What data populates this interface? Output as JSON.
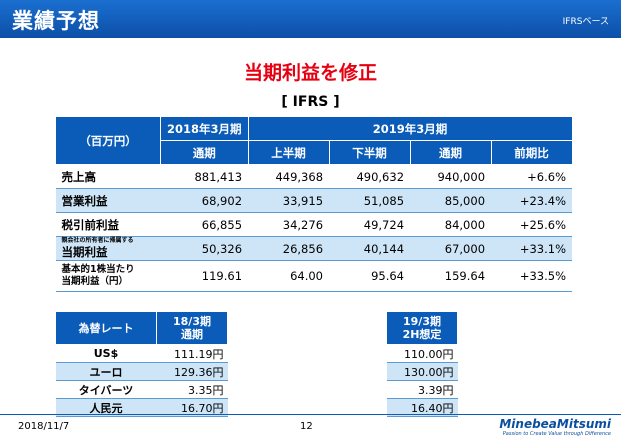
{
  "header": {
    "title": "業績予想",
    "basis": "IFRSベース"
  },
  "subtitle": "当期利益を修正",
  "standard": "[ IFRS ]",
  "main_table": {
    "unit": "（百万円）",
    "fy2018": "2018年3月期",
    "fy2019": "2019年3月期",
    "col_full_year": "通期",
    "col_h1": "上半期",
    "col_h2": "下半期",
    "col_full_year2": "通期",
    "col_yoy": "前期比",
    "rows": [
      {
        "label": "売上高",
        "sub": "",
        "v2018": "881,413",
        "h1": "449,368",
        "h2": "490,632",
        "fy": "940,000",
        "yoy": "+6.6%"
      },
      {
        "label": "営業利益",
        "sub": "",
        "v2018": "68,902",
        "h1": "33,915",
        "h2": "51,085",
        "fy": "85,000",
        "yoy": "+23.4%"
      },
      {
        "label": "税引前利益",
        "sub": "",
        "v2018": "66,855",
        "h1": "34,276",
        "h2": "49,724",
        "fy": "84,000",
        "yoy": "+25.6%"
      },
      {
        "label": "当期利益",
        "sub": "親会社の所有者に帰属する",
        "v2018": "50,326",
        "h1": "26,856",
        "h2": "40,144",
        "fy": "67,000",
        "yoy": "+33.1%"
      },
      {
        "label": "当期利益（円）",
        "sub": "基本的1株当たり",
        "v2018": "119.61",
        "h1": "64.00",
        "h2": "95.64",
        "fy": "159.64",
        "yoy": "+33.5%"
      }
    ]
  },
  "fx_table": {
    "header": "為替レート",
    "col1_line1": "18/3期",
    "col1_line2": "通期",
    "col2_line1": "19/3期",
    "col2_line2": "2H想定",
    "rows": [
      {
        "currency": "US$",
        "v18": "111.19円",
        "v19": "110.00円"
      },
      {
        "currency": "ユーロ",
        "v18": "129.36円",
        "v19": "130.00円"
      },
      {
        "currency": "タイバーツ",
        "v18": "3.35円",
        "v19": "3.39円"
      },
      {
        "currency": "人民元",
        "v18": "16.70円",
        "v19": "16.40円"
      }
    ]
  },
  "footer": {
    "date": "2018/11/7",
    "page": "12",
    "logo": "MinebeaMitsumi",
    "tagline": "Passion to Create Value through Difference"
  },
  "colors": {
    "header_blue": "#0b5cb8",
    "accent_red": "#e60012",
    "row_shade": "#cde5f7"
  }
}
